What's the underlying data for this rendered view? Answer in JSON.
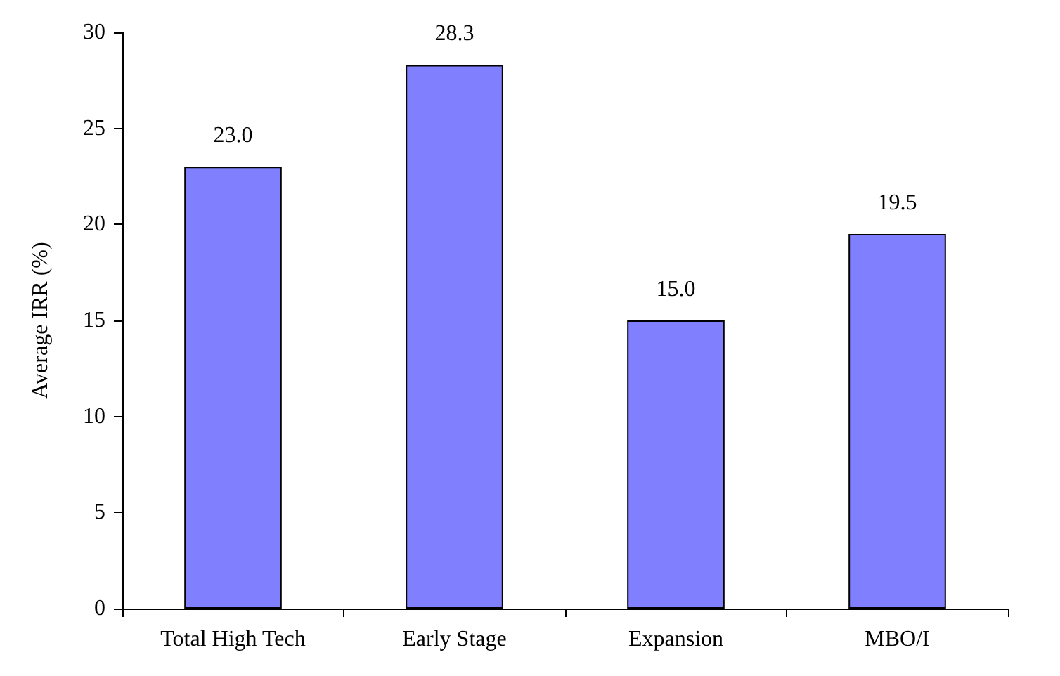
{
  "chart_data": {
    "type": "bar",
    "ylabel": "Average IRR (%)",
    "categories": [
      "Total High Tech",
      "Early Stage",
      "Expansion",
      "MBO/I"
    ],
    "values": [
      23.0,
      28.3,
      15.0,
      19.5
    ],
    "color": "#8080ff",
    "value_labels": [
      "23.0",
      "28.3",
      "15.0",
      "19.5"
    ],
    "ylim": [
      0,
      30
    ],
    "yticks": [
      0,
      5,
      10,
      15,
      20,
      25,
      30
    ],
    "grid": false
  }
}
